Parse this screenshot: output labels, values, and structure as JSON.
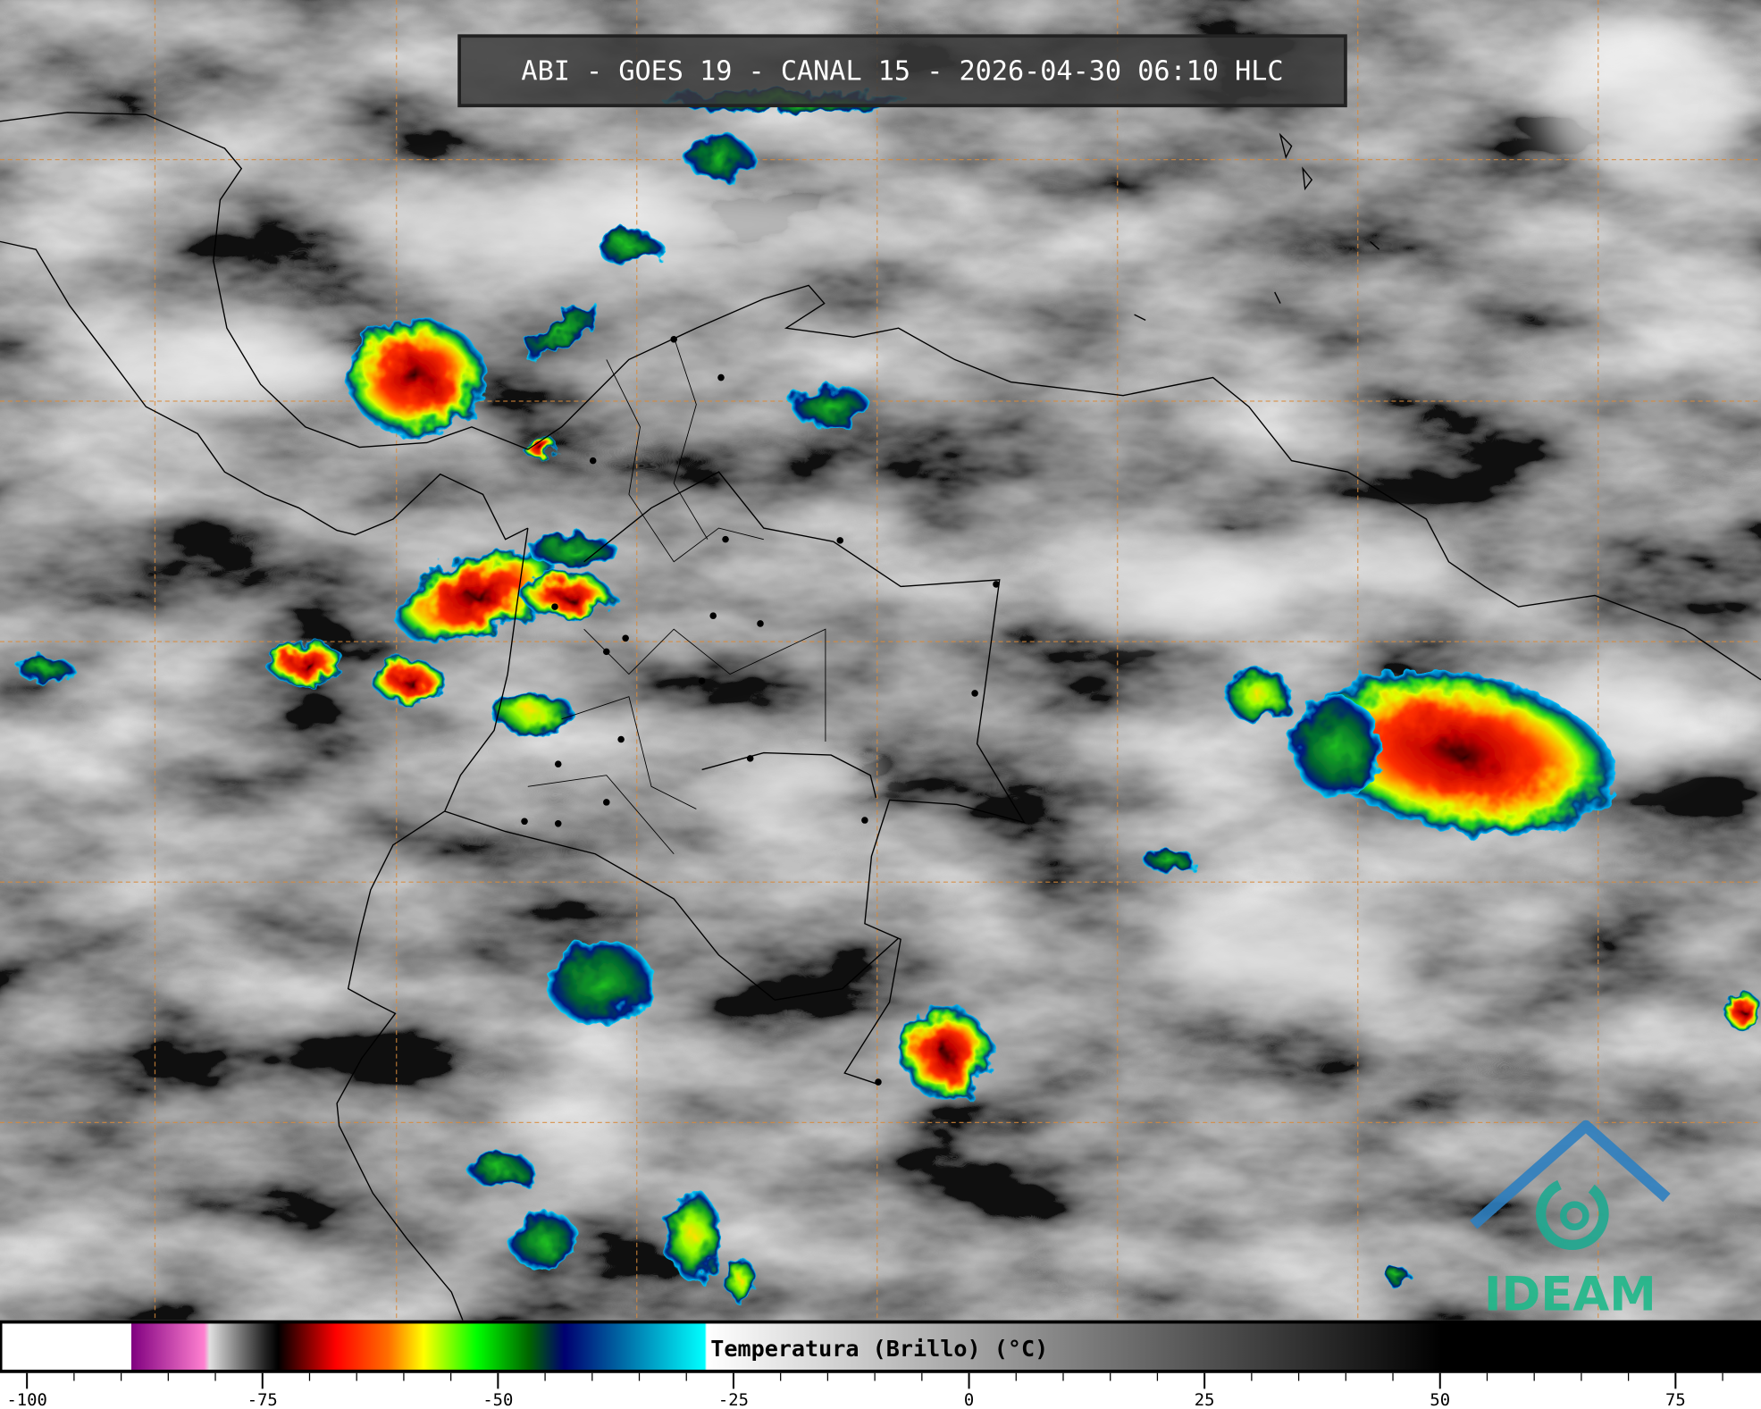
{
  "title": "ABI - GOES 19 - CANAL 15 - 2026-04-30 06:10 HLC",
  "colorbar": {
    "label": "Temperatura (Brillo) (°C)",
    "unit": "°C",
    "range": [
      -100,
      85
    ],
    "ticks": [
      "-100",
      "-75",
      "-50",
      "-25",
      "0",
      "25",
      "50",
      "75"
    ]
  },
  "logo": {
    "text": "IDEAM",
    "color": "#1fb88a",
    "arch_color": "#2f7fc0"
  },
  "colors": {
    "grid": "#d98a3a",
    "borders": "#000000",
    "cold_top_scale": [
      "#000000",
      "#ff0000",
      "#ff8000",
      "#ffff00",
      "#00ff00",
      "#006400",
      "#000080",
      "#0070c0",
      "#00ffff"
    ]
  }
}
